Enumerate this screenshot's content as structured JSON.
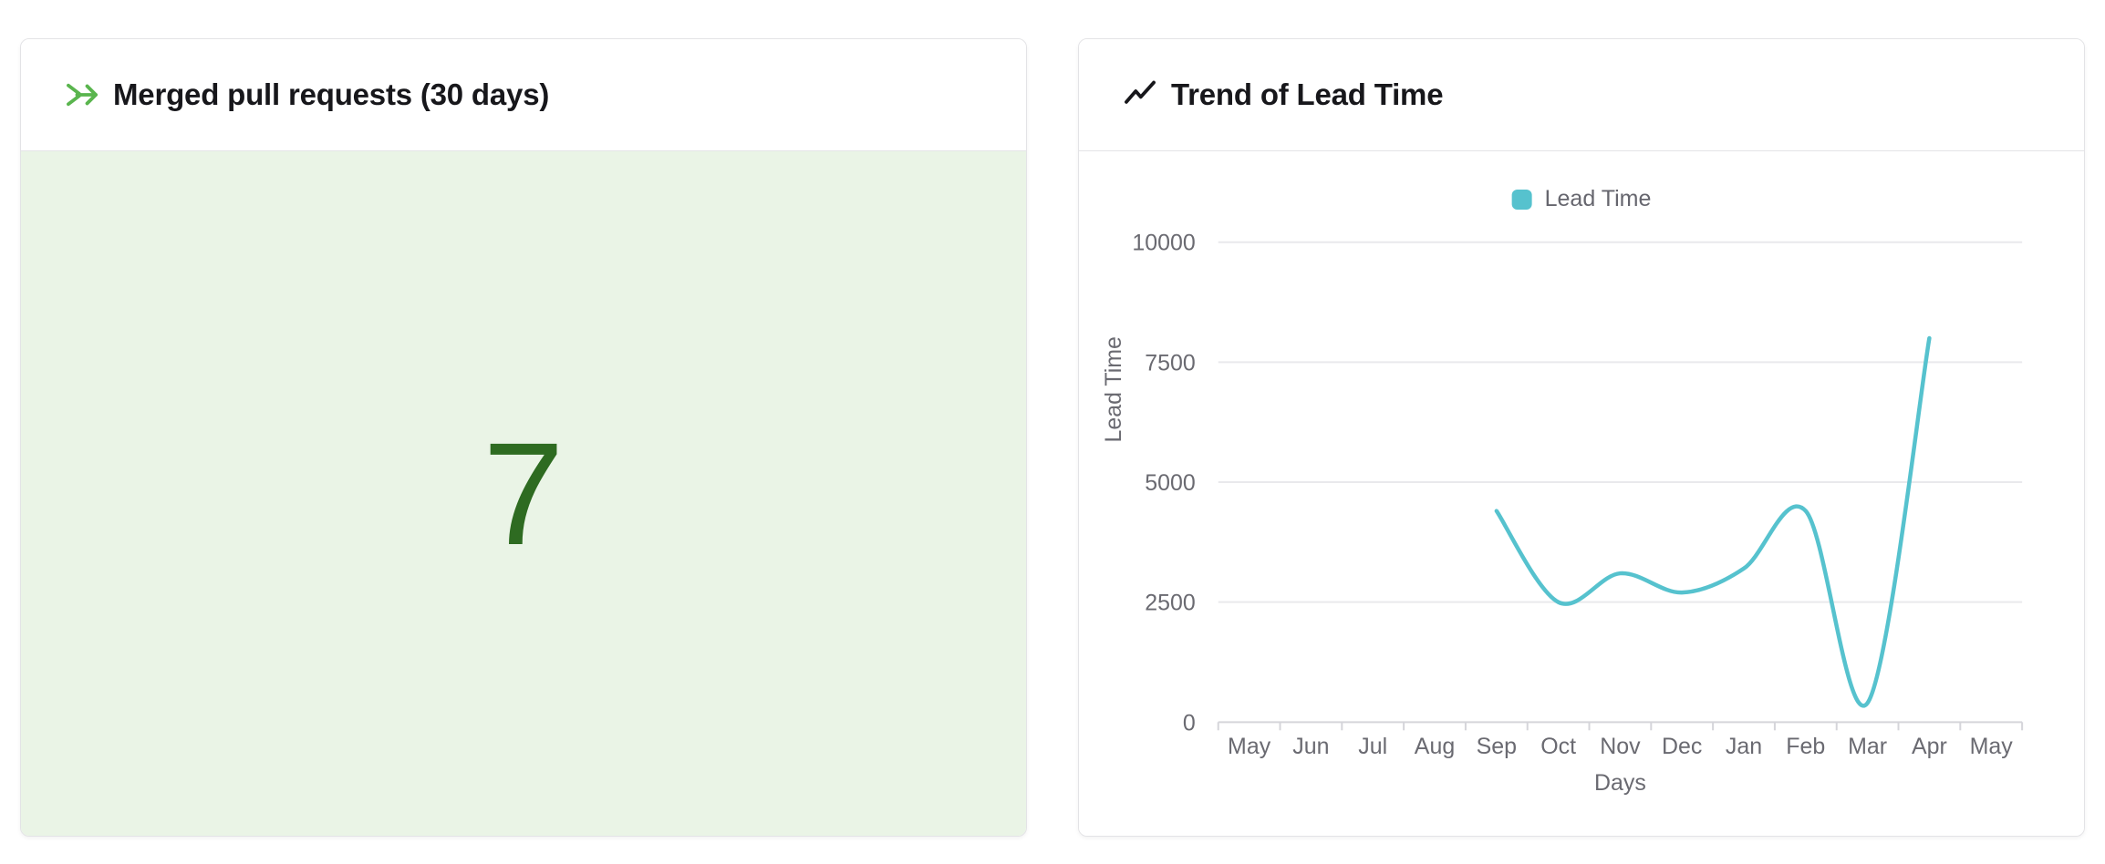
{
  "panels": {
    "merged_prs": {
      "title": "Merged pull requests (30 days)",
      "value": "7",
      "value_color": "#2e6b21",
      "body_bg": "#eaf4e6",
      "icon_color": "#5ab54e"
    },
    "lead_time": {
      "title": "Trend of Lead Time",
      "icon_color": "#17171b",
      "legend": {
        "label": "Lead Time",
        "color": "#56c2ce"
      }
    }
  },
  "chart_data": {
    "type": "line",
    "title": "Trend of Lead Time",
    "xlabel": "Days",
    "ylabel": "Lead Time",
    "categories": [
      "May",
      "Jun",
      "Jul",
      "Aug",
      "Sep",
      "Oct",
      "Nov",
      "Dec",
      "Jan",
      "Feb",
      "Mar",
      "Apr",
      "May"
    ],
    "series": [
      {
        "name": "Lead Time",
        "color": "#56c2ce",
        "values": [
          null,
          null,
          null,
          null,
          4400,
          2500,
          3100,
          2700,
          3200,
          4400,
          400,
          8000,
          null
        ]
      }
    ],
    "ylim": [
      0,
      10000
    ],
    "yticks": [
      0,
      2500,
      5000,
      7500,
      10000
    ],
    "grid": true,
    "smooth": true,
    "legend_position": "top-center",
    "label_color": "#6a6a71",
    "grid_color": "#e9e9ec",
    "axis_color": "#d5d5da"
  }
}
